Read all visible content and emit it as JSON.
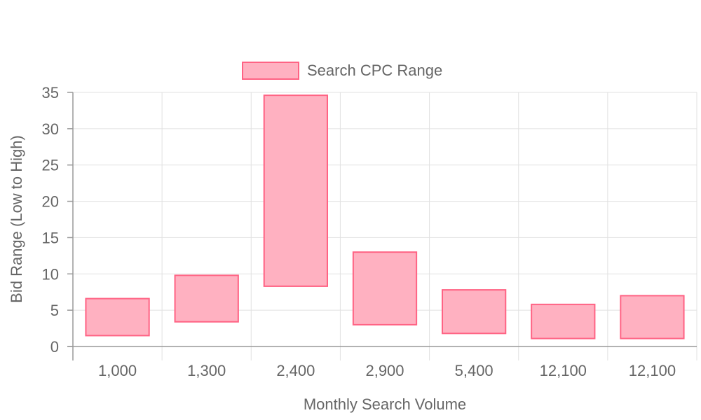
{
  "chart_data": {
    "type": "bar",
    "subtype": "floating-range",
    "xlabel": "Monthly Search Volume",
    "ylabel": "Bid Range (Low to High)",
    "ylim": [
      0,
      35
    ],
    "yticks": [
      0,
      5,
      10,
      15,
      20,
      25,
      30,
      35
    ],
    "grid": true,
    "legend": {
      "position": "top",
      "entries": [
        "Search CPC Range"
      ]
    },
    "categories": [
      "1,000",
      "1,300",
      "2,400",
      "2,900",
      "5,400",
      "12,100",
      "12,100"
    ],
    "series": [
      {
        "name": "Search CPC Range",
        "fill_color": "#ffb1c1",
        "border_color": "#ff6384",
        "ranges": [
          [
            1.5,
            6.6
          ],
          [
            3.4,
            9.8
          ],
          [
            8.3,
            34.6
          ],
          [
            3.0,
            13.0
          ],
          [
            1.8,
            7.8
          ],
          [
            1.1,
            5.8
          ],
          [
            1.1,
            7.0
          ]
        ]
      }
    ]
  }
}
